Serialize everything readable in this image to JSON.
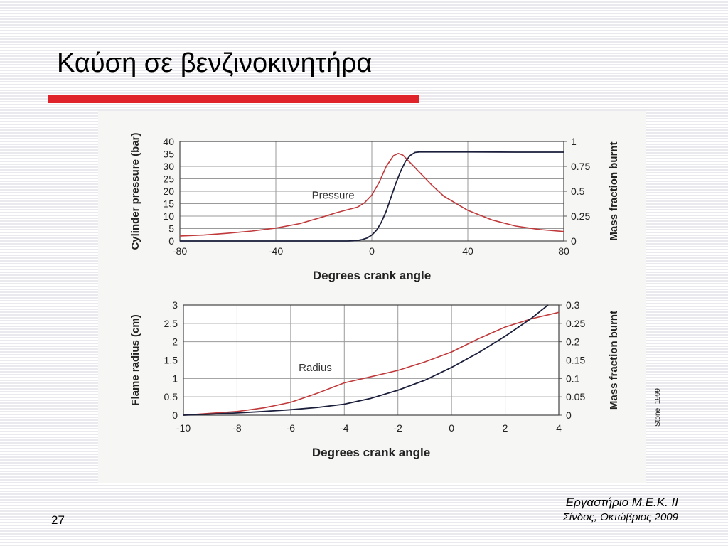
{
  "slide": {
    "title": "Καύση σε βενζινοκινητήρα",
    "page_number": "27",
    "footer_line1": "Εργαστήριο Μ.Ε.Κ. ΙΙ",
    "footer_line2": "Σίνδος, Οκτώβριος 2009",
    "source": "Stone, 1999"
  },
  "colors": {
    "accent": "#e0222b",
    "red_series": "#c0393b",
    "dark_series": "#1b1f3b"
  },
  "chart_data": [
    {
      "type": "line",
      "xlabel": "Degrees crank angle",
      "ylabel_left": "Cylinder pressure (bar)",
      "ylabel_right": "Mass fraction burnt",
      "xlim": [
        -80,
        80
      ],
      "ylim_left": [
        0,
        40
      ],
      "ylim_right": [
        0,
        1
      ],
      "x_ticks": [
        -80,
        -40,
        0,
        40,
        80
      ],
      "y_ticks_left": [
        0,
        5,
        10,
        15,
        20,
        25,
        30,
        35,
        40
      ],
      "y_ticks_right": [
        0,
        0.25,
        0.5,
        0.75,
        1
      ],
      "grid": true,
      "annotations": [
        {
          "text": "Pressure",
          "x": -25,
          "y": 17
        }
      ],
      "series": [
        {
          "name": "Pressure",
          "axis": "left",
          "color": "#c0393b",
          "x": [
            -80,
            -70,
            -60,
            -50,
            -40,
            -30,
            -20,
            -15,
            -10,
            -6,
            -3,
            0,
            3,
            6,
            9,
            11,
            13,
            16,
            20,
            25,
            30,
            40,
            50,
            60,
            70,
            80
          ],
          "y": [
            2,
            2.4,
            3.1,
            4,
            5.2,
            7,
            9.8,
            11.3,
            12.6,
            13.6,
            15.4,
            18.5,
            23.5,
            30,
            34.3,
            35.2,
            34.5,
            31.5,
            27.5,
            22.5,
            18,
            12.3,
            8.5,
            6,
            4.6,
            3.8
          ]
        },
        {
          "name": "Mass fraction burnt",
          "axis": "right",
          "color": "#1b1f3b",
          "x": [
            -80,
            -10,
            -8,
            -6,
            -4,
            -2,
            0,
            2,
            4,
            6,
            8,
            10,
            12,
            14,
            16,
            18,
            20,
            30,
            40,
            60,
            80
          ],
          "y": [
            0,
            0,
            0.002,
            0.006,
            0.014,
            0.03,
            0.06,
            0.11,
            0.19,
            0.3,
            0.44,
            0.58,
            0.7,
            0.8,
            0.86,
            0.89,
            0.895,
            0.895,
            0.895,
            0.893,
            0.893
          ]
        }
      ]
    },
    {
      "type": "line",
      "xlabel": "Degrees crank angle",
      "ylabel_left": "Flame radius (cm)",
      "ylabel_right": "Mass fraction burnt",
      "xlim": [
        -10,
        4
      ],
      "ylim_left": [
        0,
        3
      ],
      "ylim_right": [
        0,
        0.3
      ],
      "x_ticks": [
        -10,
        -8,
        -6,
        -4,
        -2,
        0,
        2,
        4
      ],
      "y_ticks_left": [
        0,
        0.5,
        1,
        1.5,
        2,
        2.5,
        3
      ],
      "y_ticks_right": [
        0,
        0.05,
        0.1,
        0.15,
        0.2,
        0.25,
        0.3
      ],
      "grid": true,
      "annotations": [
        {
          "text": "Radius",
          "x": -5.7,
          "y": 1.2
        }
      ],
      "series": [
        {
          "name": "Radius",
          "axis": "left",
          "color": "#c0393b",
          "x": [
            -10,
            -9,
            -8,
            -7,
            -6,
            -5,
            -4,
            -3,
            -2,
            -1,
            0,
            1,
            2,
            3,
            4
          ],
          "y": [
            0,
            0.05,
            0.1,
            0.2,
            0.35,
            0.6,
            0.88,
            1.05,
            1.22,
            1.45,
            1.72,
            2.08,
            2.4,
            2.63,
            2.8
          ]
        },
        {
          "name": "Mass fraction burnt",
          "axis": "right",
          "color": "#1b1f3b",
          "x": [
            -10,
            -9,
            -8,
            -7,
            -6,
            -5,
            -4,
            -3,
            -2,
            -1,
            0,
            1,
            2,
            3,
            3.6
          ],
          "y": [
            0,
            0.003,
            0.006,
            0.01,
            0.015,
            0.021,
            0.03,
            0.046,
            0.068,
            0.095,
            0.13,
            0.17,
            0.215,
            0.265,
            0.3
          ]
        }
      ]
    }
  ]
}
